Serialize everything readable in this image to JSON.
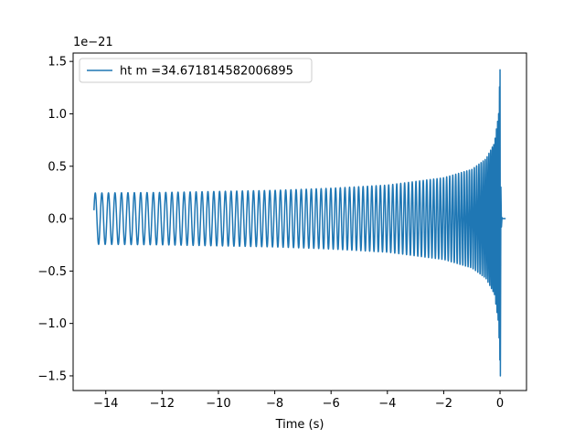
{
  "chart_data": {
    "type": "line",
    "title": "",
    "xlabel": "Time (s)",
    "ylabel": "",
    "y_scale_note": "1e−21",
    "xlim": [
      -15.16,
      0.94
    ],
    "ylim": [
      -1.64,
      1.58
    ],
    "x_ticks": [
      -14,
      -12,
      -10,
      -8,
      -6,
      -4,
      -2,
      0
    ],
    "x_tick_labels": [
      "−14",
      "−12",
      "−10",
      "−8",
      "−6",
      "−4",
      "−2",
      "0"
    ],
    "y_ticks": [
      -1.5,
      -1.0,
      -0.5,
      0.0,
      0.5,
      1.0,
      1.5
    ],
    "y_tick_labels": [
      "−1.5",
      "−1.0",
      "−0.5",
      "0.0",
      "0.5",
      "1.0",
      "1.5"
    ],
    "legend": {
      "placement": "upper-left"
    },
    "grid": false,
    "series": [
      {
        "name": "ht m =34.671814582006895",
        "color": "#1f77b4",
        "waveform": "chirp",
        "t_start": -14.42,
        "t_merger": 0.0,
        "t_end": 0.2,
        "initial_value": 0.08,
        "envelope": [
          [
            -14.42,
            0.245
          ],
          [
            -12,
            0.25
          ],
          [
            -10,
            0.26
          ],
          [
            -8,
            0.27
          ],
          [
            -6,
            0.29
          ],
          [
            -4,
            0.32
          ],
          [
            -2,
            0.39
          ],
          [
            -1,
            0.47
          ],
          [
            -0.5,
            0.57
          ],
          [
            -0.2,
            0.72
          ],
          [
            -0.05,
            1.0
          ],
          [
            0.0,
            1.42
          ]
        ],
        "min_peak": -1.5,
        "max_peak": 1.42
      }
    ]
  }
}
